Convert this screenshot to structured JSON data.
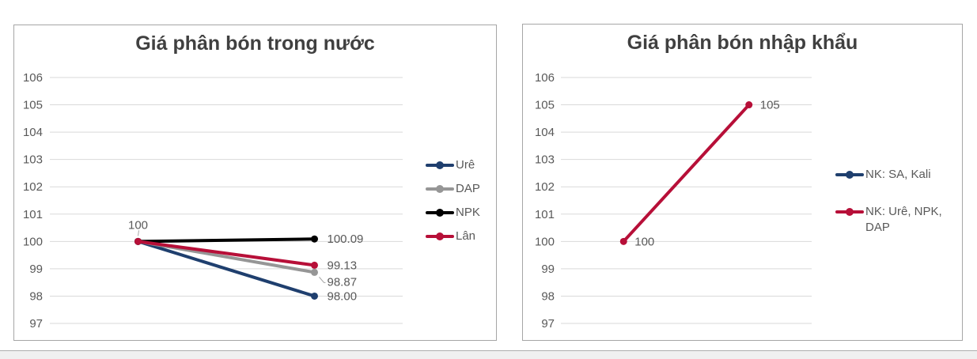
{
  "page": {
    "background": "#FFFFFF",
    "divider_color": "#ADADAD",
    "strip_color": "#F0F0F0"
  },
  "colors": {
    "navy": "#1F3F6E",
    "crimson": "#B70F38",
    "gray_series": "#969696",
    "black_series": "#000000",
    "axis_text": "#595959",
    "gridline": "#D9D9D9",
    "panel_border": "#A6A6A6",
    "title_text": "#404040"
  },
  "chart_data": [
    {
      "type": "line",
      "title": "Giá phân bón trong nước",
      "ylim": [
        97,
        106
      ],
      "y_ticks": [
        106,
        105,
        104,
        103,
        102,
        101,
        100,
        99,
        98,
        97
      ],
      "grid": true,
      "legend_position": "right",
      "x_points": 2,
      "series": [
        {
          "name": "Urê",
          "color": "#1F3F6E",
          "values": [
            100,
            98.0
          ]
        },
        {
          "name": "DAP",
          "color": "#969696",
          "values": [
            100,
            98.87
          ]
        },
        {
          "name": "NPK",
          "color": "#000000",
          "values": [
            100,
            100.09
          ]
        },
        {
          "name": "Lân",
          "color": "#B70F38",
          "values": [
            100,
            99.13
          ]
        }
      ],
      "labels": {
        "start": "100",
        "end": {
          "Urê": "98.00",
          "DAP": "98.87",
          "NPK": "100.09",
          "Lân": "99.13"
        }
      }
    },
    {
      "type": "line",
      "title": "Giá phân bón nhập khẩu",
      "ylim": [
        97,
        106
      ],
      "y_ticks": [
        106,
        105,
        104,
        103,
        102,
        101,
        100,
        99,
        98,
        97
      ],
      "grid": true,
      "legend_position": "right",
      "x_points": 2,
      "series": [
        {
          "name": "NK: SA, Kali",
          "color": "#1F3F6E",
          "values": []
        },
        {
          "name": "NK: Urê, NPK, DAP",
          "color": "#B70F38",
          "values": [
            100,
            105
          ],
          "point_labels": [
            "100",
            "105"
          ]
        }
      ]
    }
  ]
}
